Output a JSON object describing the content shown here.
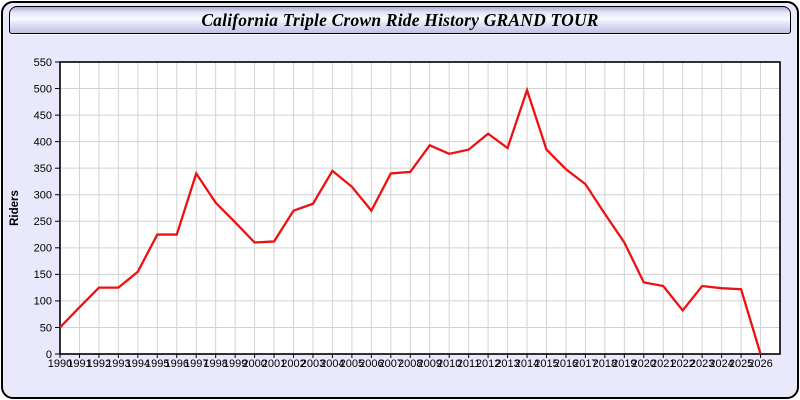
{
  "window": {
    "title": "California Triple Crown Ride History GRAND TOUR"
  },
  "colors": {
    "panel_background": "#e9e9fb",
    "plot_background": "#ffffff",
    "grid": "#d2d2d2",
    "frame": "#000000",
    "line": "#ee1111",
    "text": "#000000"
  },
  "chart_data": {
    "type": "line",
    "title": "California Triple Crown Ride History GRAND TOUR",
    "xlabel": "",
    "ylabel": "Riders",
    "ylim": [
      0,
      550
    ],
    "ytick_step": 50,
    "yticks": [
      "0",
      "50",
      "100",
      "150",
      "200",
      "250",
      "300",
      "350",
      "400",
      "450",
      "500",
      "550"
    ],
    "grid": true,
    "legend": false,
    "x": [
      1990,
      1991,
      1992,
      1993,
      1994,
      1995,
      1996,
      1997,
      1998,
      1999,
      2000,
      2001,
      2002,
      2003,
      2004,
      2005,
      2006,
      2007,
      2008,
      2009,
      2010,
      2011,
      2012,
      2013,
      2014,
      2015,
      2016,
      2017,
      2018,
      2019,
      2020,
      2021,
      2022,
      2023,
      2024,
      2025,
      2026
    ],
    "series": [
      {
        "name": "Riders",
        "color": "#ee1111",
        "values": [
          50,
          88,
          125,
          125,
          155,
          225,
          225,
          340,
          285,
          248,
          210,
          212,
          270,
          283,
          345,
          315,
          270,
          340,
          343,
          393,
          377,
          385,
          415,
          388,
          497,
          385,
          348,
          320,
          264,
          210,
          135,
          128,
          82,
          128,
          124,
          122,
          0
        ]
      }
    ]
  }
}
